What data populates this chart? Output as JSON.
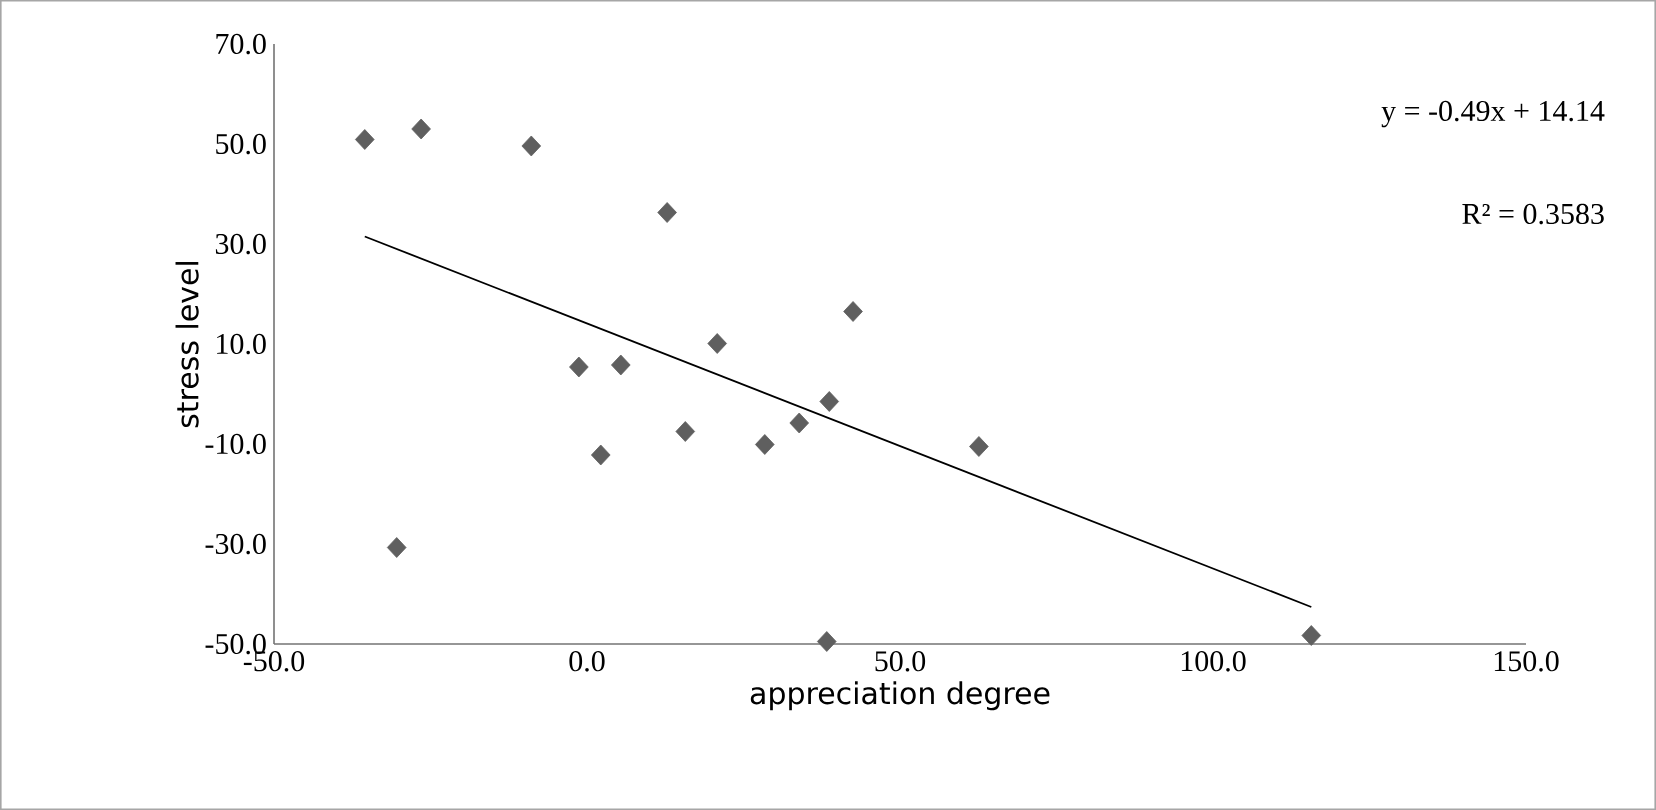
{
  "chart_data": {
    "type": "scatter",
    "xlabel": "appreciation degree",
    "ylabel": "stress level",
    "xlim": [
      -50,
      150
    ],
    "ylim": [
      -50,
      70
    ],
    "xticks": [
      {
        "value": -50,
        "label": "-50.0"
      },
      {
        "value": 0,
        "label": "0.0"
      },
      {
        "value": 50,
        "label": "50.0"
      },
      {
        "value": 100,
        "label": "100.0"
      },
      {
        "value": 150,
        "label": "150.0"
      }
    ],
    "yticks": [
      {
        "value": -50,
        "label": "-50.0"
      },
      {
        "value": -30,
        "label": "-30.0"
      },
      {
        "value": -10,
        "label": "-10.0"
      },
      {
        "value": 10,
        "label": "10.0"
      },
      {
        "value": 30,
        "label": "30.0"
      },
      {
        "value": 50,
        "label": "50.0"
      },
      {
        "value": 70,
        "label": "70.0"
      }
    ],
    "marker": "diamond",
    "series": [
      {
        "color": "#5f5f5f",
        "x": [
          -35.5,
          -26.5,
          -8.9,
          12.8,
          42.5,
          20.8,
          -1.3,
          5.4,
          15.7,
          2.2,
          28.4,
          33.9,
          38.7,
          62.6,
          -30.4,
          38.3,
          115.7
        ],
        "values": [
          50.9,
          53.0,
          49.6,
          36.3,
          16.5,
          10.1,
          5.4,
          5.8,
          -7.5,
          -12.2,
          -10.1,
          -5.8,
          -1.5,
          -10.5,
          -30.7,
          -49.5,
          -48.3
        ]
      },
      {
        "type": "line",
        "marker": "none",
        "color": "#000000",
        "x": [
          -35.5,
          115.7
        ],
        "values": [
          31.5,
          -42.6
        ]
      }
    ],
    "annotations": [
      "y = -0.49x + 14.14",
      "R² = 0.3583"
    ]
  }
}
